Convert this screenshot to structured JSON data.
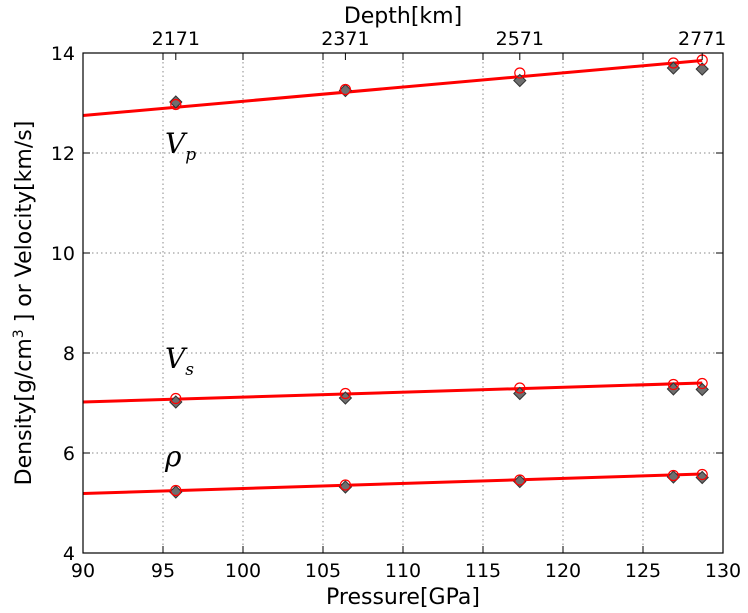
{
  "chart_data": {
    "type": "scatter",
    "title": "",
    "xlabel": "Pressure[GPa]",
    "ylabel_parts": {
      "before": "Density[g/cm",
      "sup": "3",
      "after": " ] or Velocity[km/s]"
    },
    "top_xlabel": "Depth[km]",
    "xlim": [
      90,
      130
    ],
    "ylim": [
      4,
      14
    ],
    "x_ticks": [
      "90",
      "95",
      "100",
      "105",
      "110",
      "115",
      "120",
      "125",
      "130"
    ],
    "y_ticks": [
      "4",
      "6",
      "8",
      "10",
      "12",
      "14"
    ],
    "top_ticks": [
      {
        "label": "2171",
        "pressure": 95.8
      },
      {
        "label": "2371",
        "pressure": 106.4
      },
      {
        "label": "2571",
        "pressure": 117.3
      },
      {
        "label": "2771",
        "pressure": 128.7
      }
    ],
    "grid": true,
    "series": [
      {
        "label": "V",
        "sub": "p",
        "line": [
          [
            90,
            12.75
          ],
          [
            128.7,
            13.85
          ]
        ],
        "circles": [
          [
            95.8,
            12.97
          ],
          [
            106.4,
            13.27
          ],
          [
            117.3,
            13.6
          ],
          [
            126.9,
            13.8
          ],
          [
            128.7,
            13.86
          ]
        ],
        "diamonds": [
          [
            95.8,
            13.02
          ],
          [
            106.4,
            13.25
          ],
          [
            117.3,
            13.45
          ],
          [
            126.9,
            13.7
          ],
          [
            128.7,
            13.68
          ]
        ]
      },
      {
        "label": "V",
        "sub": "s",
        "line": [
          [
            90,
            7.02
          ],
          [
            128.7,
            7.4
          ]
        ],
        "circles": [
          [
            95.8,
            7.09
          ],
          [
            106.4,
            7.19
          ],
          [
            117.3,
            7.3
          ],
          [
            126.9,
            7.37
          ],
          [
            128.7,
            7.39
          ]
        ],
        "diamonds": [
          [
            95.8,
            7.02
          ],
          [
            106.4,
            7.1
          ],
          [
            117.3,
            7.19
          ],
          [
            126.9,
            7.28
          ],
          [
            128.7,
            7.27
          ]
        ]
      },
      {
        "label": "ρ",
        "sub": "",
        "line": [
          [
            90,
            5.19
          ],
          [
            128.7,
            5.58
          ]
        ],
        "circles": [
          [
            95.8,
            5.25
          ],
          [
            106.4,
            5.36
          ],
          [
            117.3,
            5.46
          ],
          [
            126.9,
            5.55
          ],
          [
            128.7,
            5.57
          ]
        ],
        "diamonds": [
          [
            95.8,
            5.22
          ],
          [
            106.4,
            5.32
          ],
          [
            117.3,
            5.43
          ],
          [
            126.9,
            5.52
          ],
          [
            128.7,
            5.51
          ]
        ]
      }
    ],
    "colors": {
      "line": "#ff0000",
      "circle": "#ff0000",
      "diamond_fill": "#6e6e6e",
      "diamond_edge": "#333333",
      "grid": "#8a8a8a"
    }
  }
}
